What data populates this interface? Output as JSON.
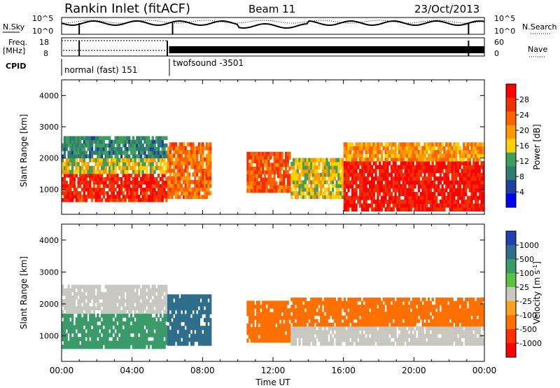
{
  "header": {
    "station": "Rankin Inlet (fitACF)",
    "beam": "Beam 11",
    "date": "23/Oct/2013"
  },
  "top_panels": {
    "nsky_label": "N.Sky",
    "nsearch_label": "N.Search",
    "freq_label_1": "Freq.",
    "freq_label_2": "[MHz]",
    "nave_label": "Nave",
    "cpid_label": "CPID",
    "noise_left_ticks": [
      "10^5",
      "10^0"
    ],
    "noise_right_ticks": [
      "10^5",
      "10^0"
    ],
    "freq_ticks": [
      "18",
      "8"
    ],
    "nave_ticks": [
      "60",
      "0"
    ],
    "cpid_segments": [
      {
        "label": "normal (fast) 151",
        "start_hour": 0,
        "end_hour": 6.0
      },
      {
        "label": "twofsound -3501",
        "start_hour": 6.0,
        "end_hour": 24
      }
    ]
  },
  "chart_data": [
    {
      "type": "heatmap",
      "name": "power",
      "ylabel": "Slant Range [km]",
      "xlabel": "",
      "xlim": [
        0,
        24
      ],
      "ylim": [
        200,
        4500
      ],
      "yticks": [
        "1000",
        "2000",
        "3000",
        "4000"
      ],
      "colorbar_label": "Power [dB]",
      "colorbar_ticks": [
        "28",
        "24",
        "20",
        "16",
        "12",
        "8",
        "4"
      ],
      "colorbar_colors": [
        "#ff0000",
        "#f03000",
        "#ff6000",
        "#ff9900",
        "#ffd000",
        "#3e9e5c",
        "#2f7c73",
        "#2040a0",
        "#0000ff"
      ],
      "bands": [
        {
          "t0": 0.0,
          "t1": 6.0,
          "r0": 600,
          "r1": 1500,
          "level": 26
        },
        {
          "t0": 0.0,
          "t1": 6.0,
          "r0": 1500,
          "r1": 2000,
          "level": 14
        },
        {
          "t0": 0.0,
          "t1": 6.0,
          "r0": 2000,
          "r1": 2700,
          "level": 8
        },
        {
          "t0": 6.0,
          "t1": 8.5,
          "r0": 700,
          "r1": 2500,
          "level": 20
        },
        {
          "t0": 10.5,
          "t1": 13.0,
          "r0": 900,
          "r1": 2200,
          "level": 22
        },
        {
          "t0": 13.0,
          "t1": 16.0,
          "r0": 700,
          "r1": 2000,
          "level": 14
        },
        {
          "t0": 16.0,
          "t1": 24.0,
          "r0": 300,
          "r1": 1900,
          "level": 27
        },
        {
          "t0": 16.0,
          "t1": 24.0,
          "r0": 1900,
          "r1": 2500,
          "level": 18
        }
      ]
    },
    {
      "type": "heatmap",
      "name": "velocity",
      "ylabel": "Slant Range [km]",
      "xlabel": "Time UT",
      "xlim": [
        0,
        24
      ],
      "ylim": [
        200,
        4500
      ],
      "yticks": [
        "1000",
        "2000",
        "3000",
        "4000"
      ],
      "xticks": [
        "00:00",
        "04:00",
        "08:00",
        "12:00",
        "16:00",
        "20:00",
        "00:00"
      ],
      "colorbar_label": "Velocity [m s^-1]",
      "colorbar_ticks": [
        "1000",
        "500",
        "100",
        "25",
        "-25",
        "-100",
        "-500",
        "-1000"
      ],
      "colorbar_colors": [
        "#2040b0",
        "#2f6e8a",
        "#3a9a6a",
        "#5cc040",
        "#c8c8c0",
        "#ffa020",
        "#ff7000",
        "#ff3000",
        "#ff0000"
      ],
      "bands": [
        {
          "t0": 0.0,
          "t1": 6.0,
          "r0": 600,
          "r1": 1700,
          "level": 120
        },
        {
          "t0": 0.0,
          "t1": 6.0,
          "r0": 1700,
          "r1": 2600,
          "level": 0
        },
        {
          "t0": 6.0,
          "t1": 8.5,
          "r0": 700,
          "r1": 2300,
          "level": 300
        },
        {
          "t0": 10.5,
          "t1": 13.0,
          "r0": 800,
          "r1": 2100,
          "level": -200
        },
        {
          "t0": 13.0,
          "t1": 24.0,
          "r0": 700,
          "r1": 1300,
          "level": 0
        },
        {
          "t0": 13.0,
          "t1": 24.0,
          "r0": 1300,
          "r1": 2200,
          "level": -300
        }
      ]
    }
  ]
}
